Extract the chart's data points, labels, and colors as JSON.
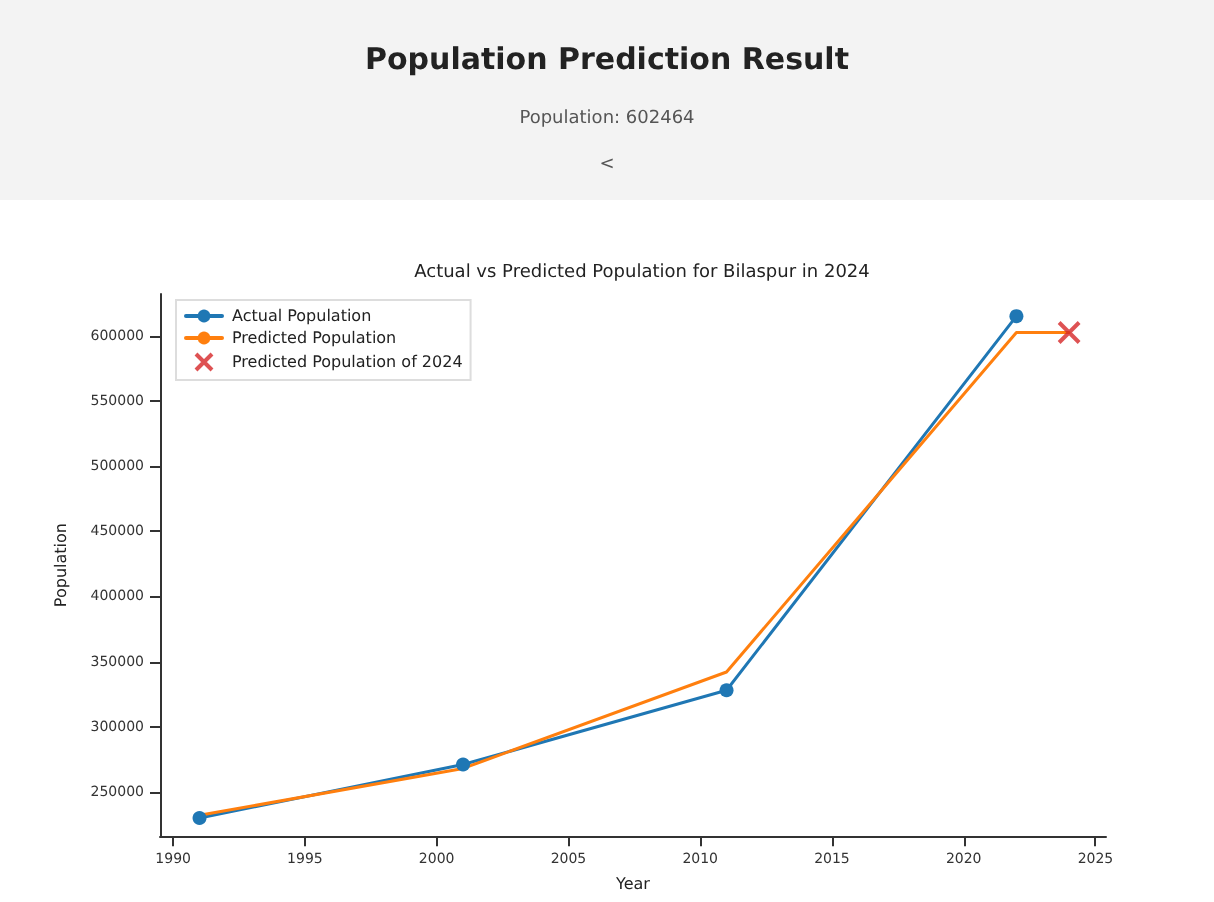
{
  "chart_data": {
    "type": "line",
    "title": "Actual vs Predicted Population for Bilaspur in 2024",
    "annotations": [
      "Population Prediction Result",
      "Population: 602464",
      "<"
    ],
    "xlabel": "Year",
    "ylabel": "Population",
    "series": [
      {
        "name": "Actual Population",
        "color": "#1f77b4",
        "marker": "circle",
        "x": [
          1991,
          2001,
          2011,
          2022
        ],
        "values": [
          230000,
          271000,
          328000,
          615000
        ]
      },
      {
        "name": "Predicted Population",
        "color": "#ff7f0e",
        "marker": "none",
        "x": [
          1991,
          2001,
          2011,
          2022,
          2024
        ],
        "values": [
          232000,
          268000,
          342000,
          602464,
          602464
        ]
      },
      {
        "name": "Predicted Population of 2024",
        "type": "scatter",
        "color": "#d62728",
        "marker": "cross",
        "x": [
          2024
        ],
        "values": [
          602464
        ]
      }
    ],
    "xlim": [
      1989.5,
      2025.4
    ],
    "xticks": [
      1990,
      1995,
      2000,
      2005,
      2010,
      2015,
      2020,
      2025
    ],
    "ylim": [
      216000,
      632000
    ],
    "yticks": [
      250000,
      300000,
      350000,
      400000,
      450000,
      500000,
      550000,
      600000
    ],
    "grid": false,
    "legend": "top left"
  }
}
